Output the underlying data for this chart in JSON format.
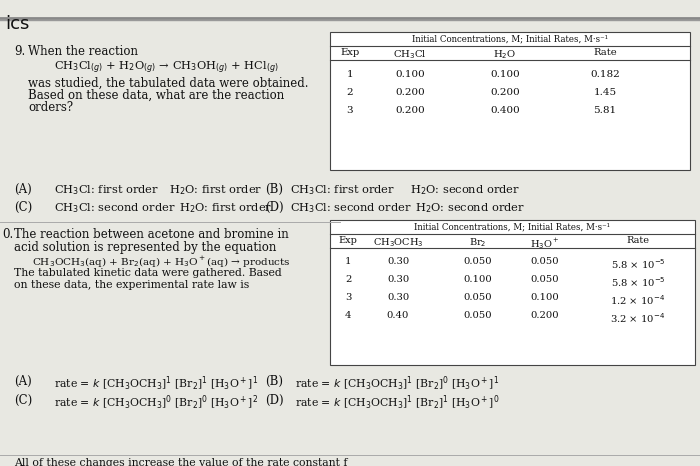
{
  "bg_color": "#e8e8e2",
  "text_color": "#111111",
  "table_edge": "#444444",
  "fs": 8.0,
  "fs_small": 7.0,
  "fs_eq": 7.8,
  "fs_table_title": 6.2,
  "fs_table_hdr": 7.0,
  "fs_table_data": 7.2,
  "header_line": "#555555",
  "title_text": "ics",
  "q9_when": "When the reaction",
  "q9_eq": "CH$_3$Cl$_{(g)}$ + H$_2$O$_{(g)}$ → CH$_3$OH$_{(g)}$ + HCl$_{(g)}$",
  "q9_was": "was studied, the tabulated data were obtained.",
  "q9_based": "Based on these data, what are the reaction",
  "q9_orders": "orders?",
  "t1_title": "Initial Concentrations, M; Initial Rates, M·s⁻¹",
  "t1_headers": [
    "Exp",
    "CH$_3$Cl",
    "H$_2$O",
    "Rate"
  ],
  "t1_data": [
    [
      "1",
      "0.100",
      "0.100",
      "0.182"
    ],
    [
      "2",
      "0.200",
      "0.200",
      "1.45"
    ],
    [
      "3",
      "0.200",
      "0.400",
      "5.81"
    ]
  ],
  "q9_A_left": "(A)",
  "q9_A_mid": "CH$_3$Cl: first order",
  "q9_A_right": "H$_2$O: first order",
  "q9_B_left": "(B)",
  "q9_B_mid": "CH$_3$Cl: first order",
  "q9_B_right": "H$_2$O: second order",
  "q9_C_left": "(C)",
  "q9_C_mid": "CH$_3$Cl: second order",
  "q9_C_right": "H$_2$O: first order",
  "q9_D_left": "(D)",
  "q9_D_mid": "CH$_3$Cl: second order",
  "q9_D_right": "H$_2$O: second order",
  "q10_num": "0.",
  "q10_line1": "The reaction between acetone and bromine in",
  "q10_line2": "acid solution is represented by the equation",
  "q10_eq": "CH$_3$OCH$_3$(aq) + Br$_2$(aq) + H$_3$O$^+$(aq) → products",
  "q10_kin1": "The tabulated kinetic data were gathered. Based",
  "q10_kin2": "on these data, the experimental rate law is",
  "t2_title": "Initial Concentrations, M; Initial Rates, M·s⁻¹",
  "t2_headers": [
    "Exp",
    "CH$_3$OCH$_3$",
    "Br$_2$",
    "H$_3$O$^+$",
    "Rate"
  ],
  "t2_data": [
    [
      "1",
      "0.30",
      "0.050",
      "0.050",
      "5.8 × 10$^{-5}$"
    ],
    [
      "2",
      "0.30",
      "0.100",
      "0.050",
      "5.8 × 10$^{-5}$"
    ],
    [
      "3",
      "0.30",
      "0.050",
      "0.100",
      "1.2 × 10$^{-4}$"
    ],
    [
      "4",
      "0.40",
      "0.050",
      "0.200",
      "3.2 × 10$^{-4}$"
    ]
  ],
  "q10_A_left": "(A)",
  "q10_A_eq": "rate = $k$ [CH$_3$OCH$_3$]$^1$ [Br$_2$]$^1$ [H$_3$O$^+$]$^1$",
  "q10_B_left": "(B)",
  "q10_B_eq": "rate = $k$ [CH$_3$OCH$_3$]$^1$ [Br$_2$]$^0$ [H$_3$O$^+$]$^1$",
  "q10_C_left": "(C)",
  "q10_C_eq": "rate = $k$ [CH$_3$OCH$_3$]$^0$ [Br$_2$]$^0$ [H$_3$O$^+$]$^2$",
  "q10_D_left": "(D)",
  "q10_D_eq": "rate = $k$ [CH$_3$OCH$_3$]$^1$ [Br$_2$]$^1$ [H$_3$O$^+$]$^0$",
  "q11_text": "All of these changes increase the value of the rate constant f"
}
